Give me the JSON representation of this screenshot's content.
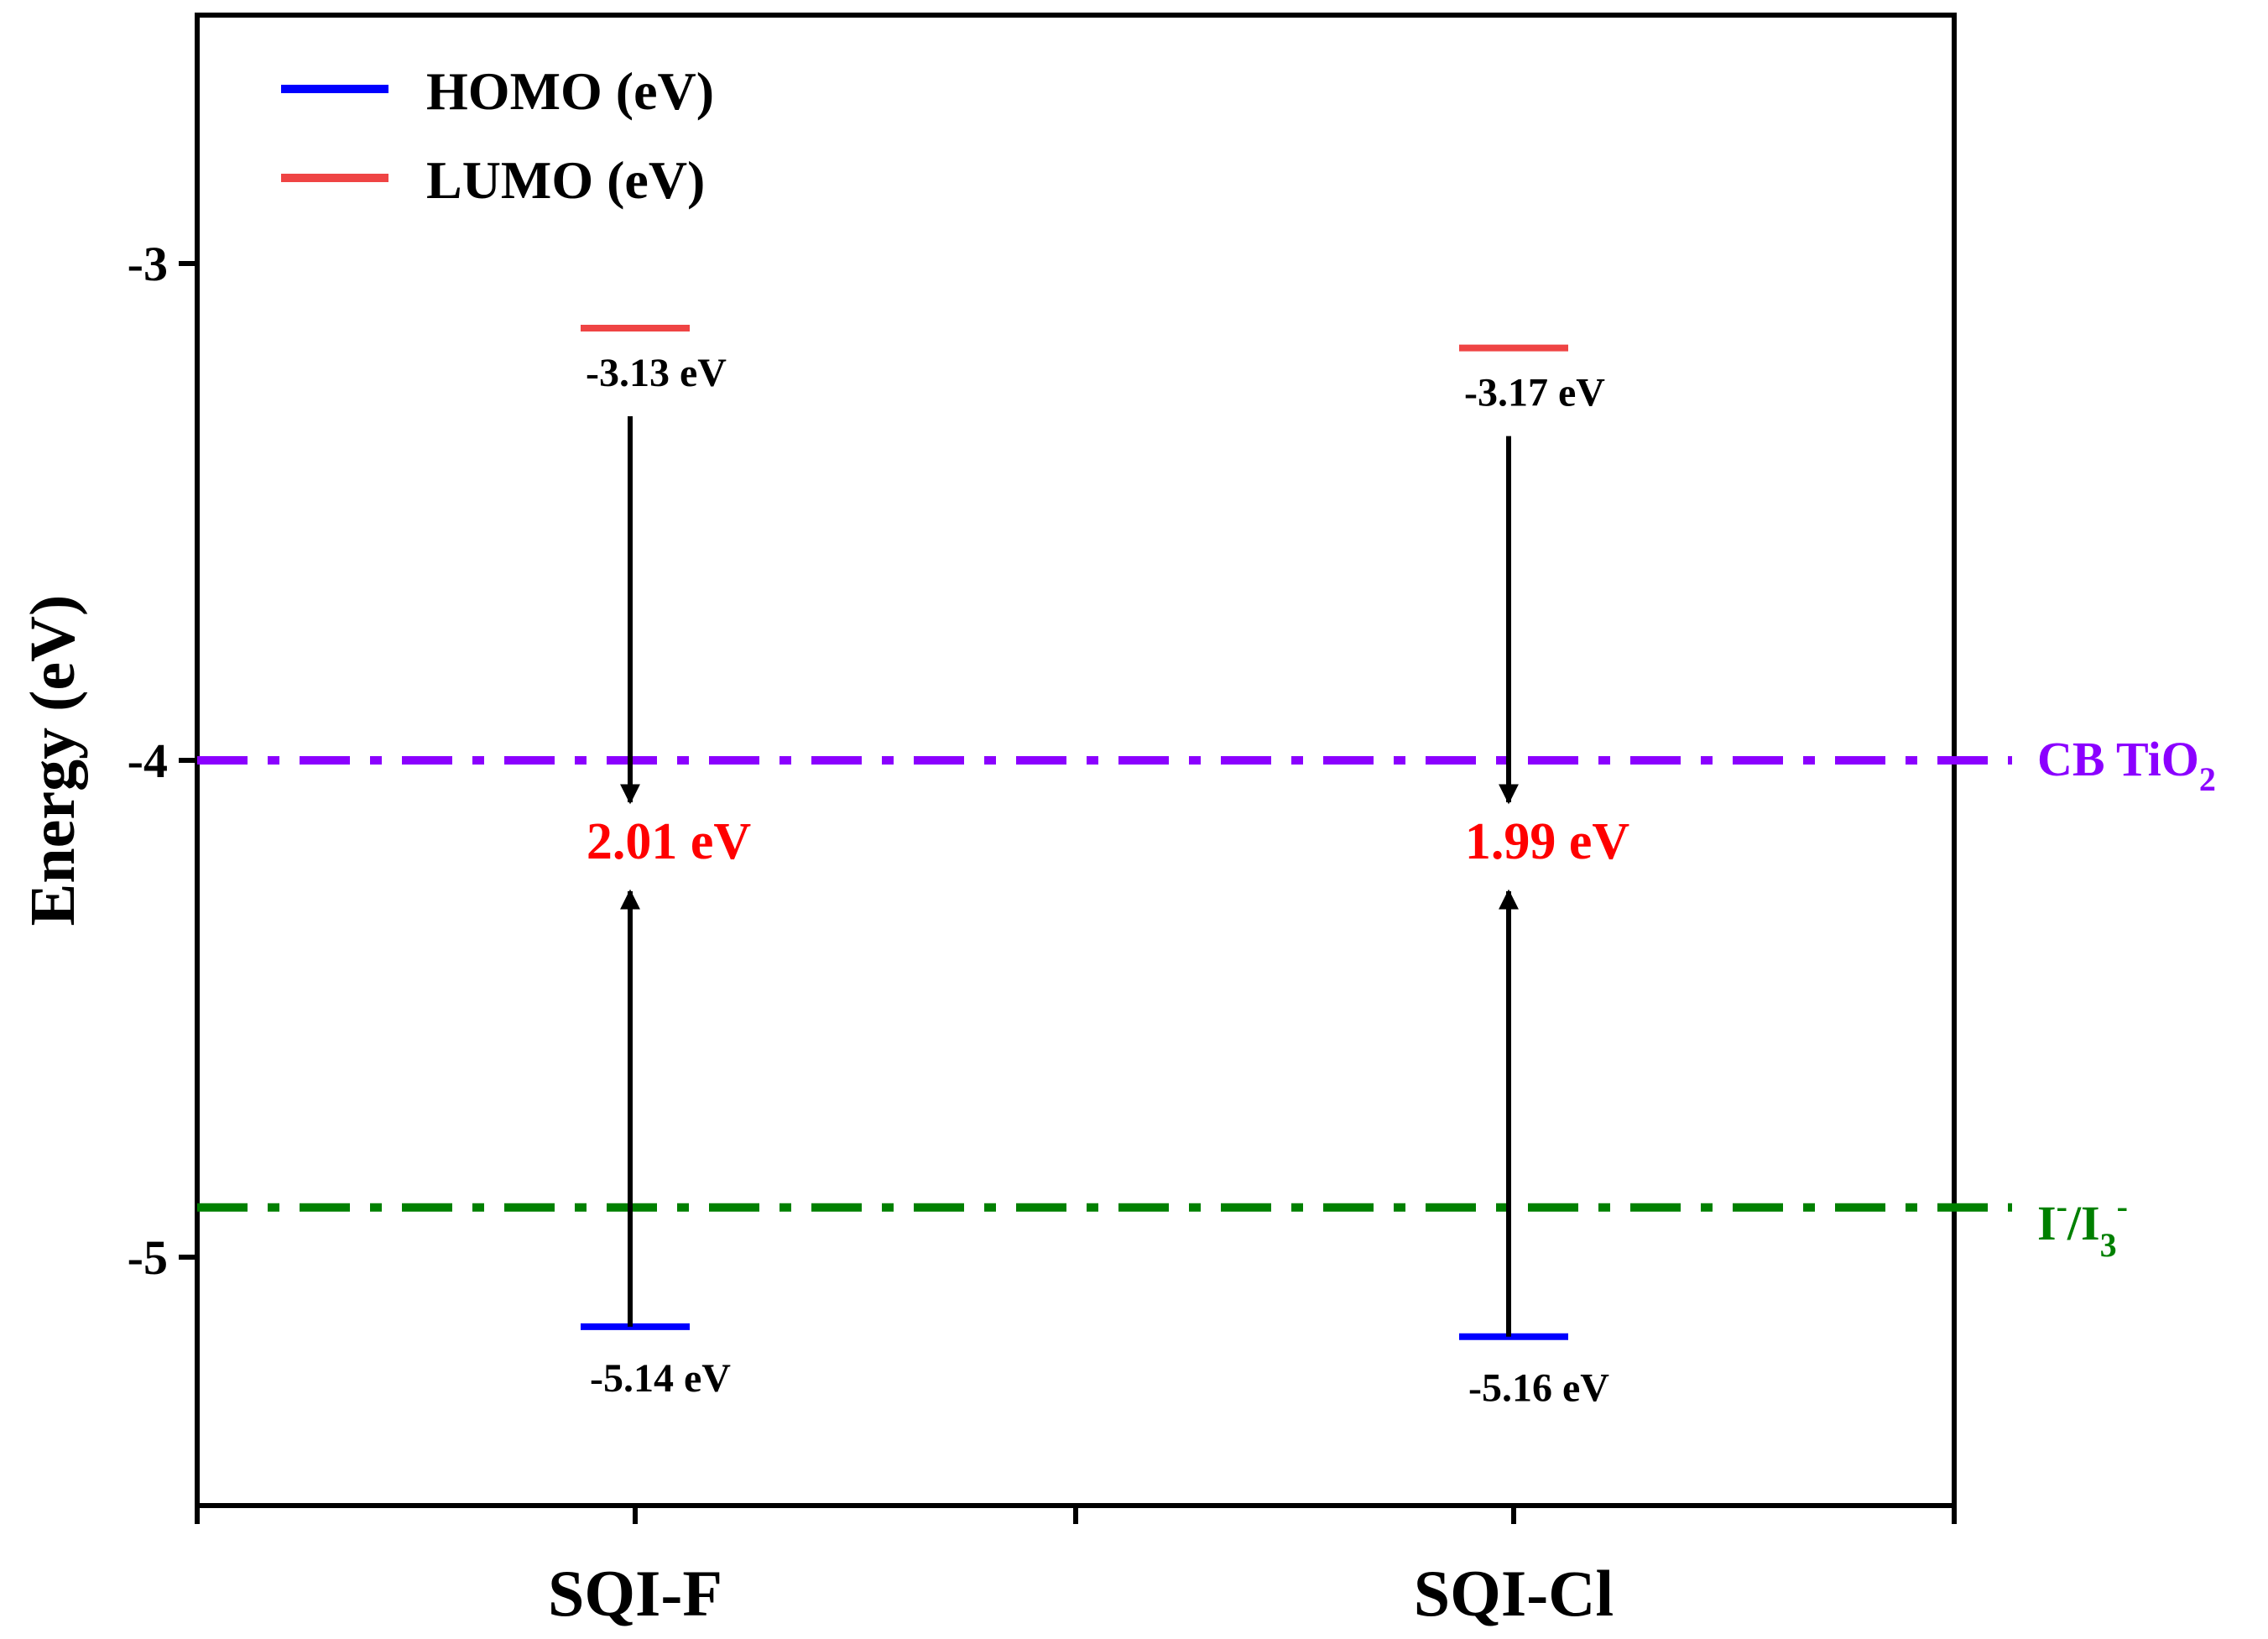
{
  "chart_data": {
    "type": "energy-level-diagram",
    "title": "",
    "ylabel": "Energy (eV)",
    "xlabel": "",
    "ylim": [
      -5.5,
      -2.5
    ],
    "yticks": [
      -3,
      -4,
      -5
    ],
    "ytick_labels": [
      "-3",
      "-4",
      "-5"
    ],
    "categories": [
      "SQI-F",
      "SQI-Cl"
    ],
    "legend": {
      "placement": "top-left",
      "entries": [
        {
          "name": "HOMO (eV)",
          "color": "#0000ff"
        },
        {
          "name": "LUMO (eV)",
          "color": "#ef4444"
        }
      ]
    },
    "series": [
      {
        "name": "HOMO (eV)",
        "color": "#0000ff",
        "values": [
          -5.14,
          -5.16
        ],
        "labels": [
          "-5.14 eV",
          "-5.16 eV"
        ]
      },
      {
        "name": "LUMO (eV)",
        "color": "#ef4444",
        "values": [
          -3.13,
          -3.17
        ],
        "labels": [
          "-3.13 eV",
          "-3.17 eV"
        ]
      }
    ],
    "band_gaps": {
      "values": [
        2.01,
        1.99
      ],
      "labels": [
        "2.01 eV",
        "1.99 eV"
      ],
      "color": "#ff0000"
    },
    "reference_lines": [
      {
        "name": "CB TiO2",
        "value": -4.0,
        "color": "#8b00ff",
        "label_main": "CB TiO",
        "label_sub": "2"
      },
      {
        "name": "I-/I3-",
        "value": -4.9,
        "color": "#008000",
        "label_main": "I",
        "label_sup1": "-",
        "label_mid": "/I",
        "label_sub": "3",
        "label_sup2": "-"
      }
    ]
  }
}
